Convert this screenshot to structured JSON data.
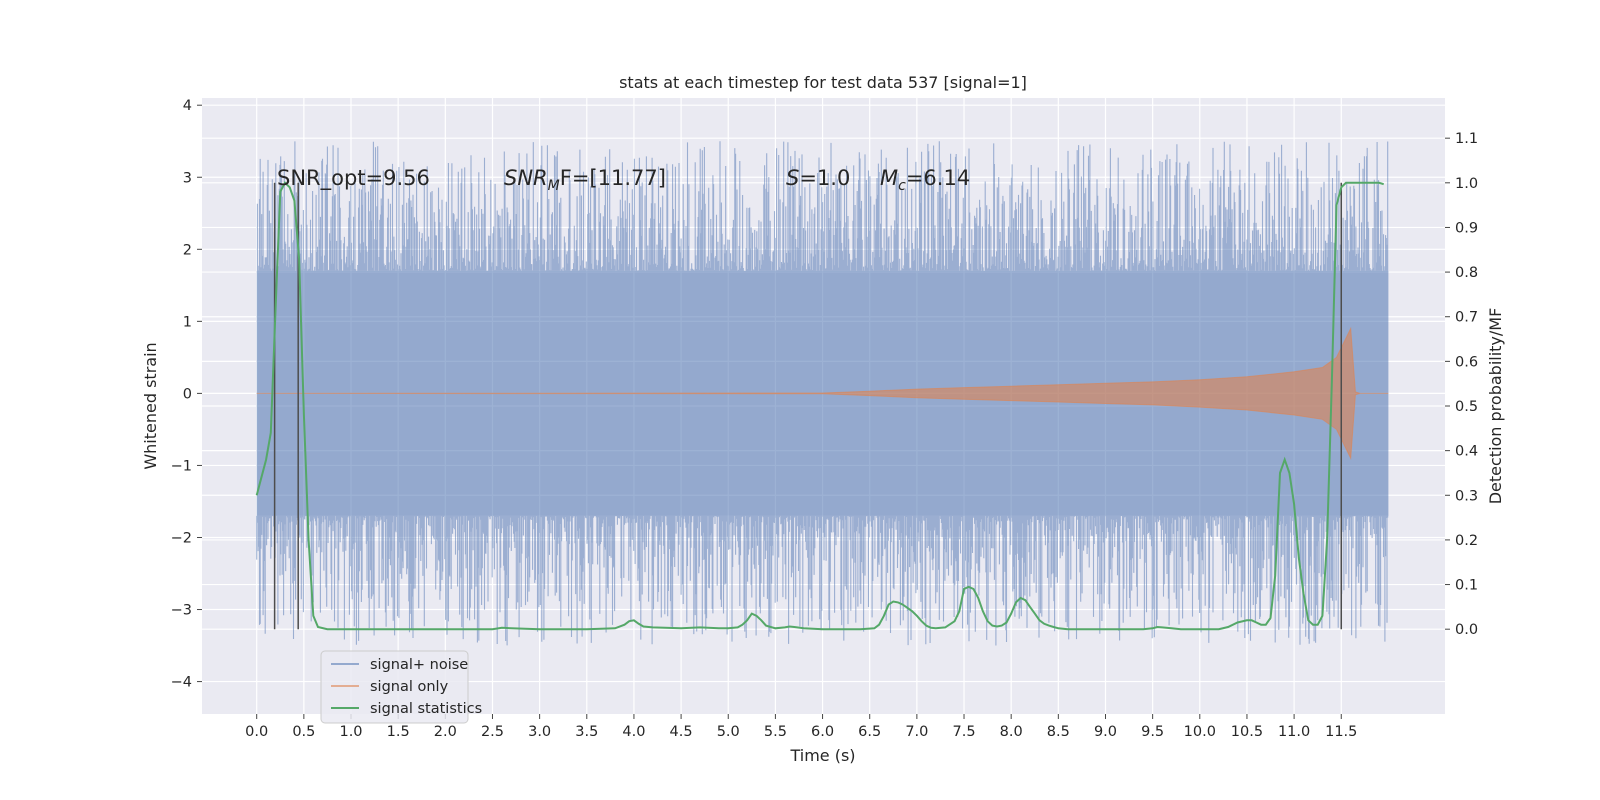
{
  "chart_data": {
    "type": "line",
    "title": "stats at each timestep for test data 537 [signal=1]",
    "xlabel": "Time (s)",
    "ylabel_left": "Whitened strain",
    "ylabel_right": "Detection probability/MF",
    "xlim": [
      -0.58,
      12.6
    ],
    "ylim_left": [
      -4.45,
      4.1
    ],
    "ylim_right": [
      -0.19,
      1.19
    ],
    "x_ticks": [
      "0.0",
      "0.5",
      "1.0",
      "1.5",
      "2.0",
      "2.5",
      "3.0",
      "3.5",
      "4.0",
      "4.5",
      "5.0",
      "5.5",
      "6.0",
      "6.5",
      "7.0",
      "7.5",
      "8.0",
      "8.5",
      "9.0",
      "9.5",
      "10.0",
      "10.5",
      "11.0",
      "11.5"
    ],
    "left_ticks": [
      -4,
      -3,
      -2,
      -1,
      0,
      1,
      2,
      3,
      4
    ],
    "left_tick_labels": [
      "−4",
      "−3",
      "−2",
      "−1",
      "0",
      "1",
      "2",
      "3",
      "4"
    ],
    "right_ticks": [
      0.0,
      0.1,
      0.2,
      0.3,
      0.4,
      0.5,
      0.6,
      0.7,
      0.8,
      0.9,
      1.0,
      1.1
    ],
    "right_tick_labels": [
      "0.0",
      "0.1",
      "0.2",
      "0.3",
      "0.4",
      "0.5",
      "0.6",
      "0.7",
      "0.8",
      "0.9",
      "1.0",
      "1.1"
    ],
    "grid": true,
    "legend_position": "lower-left",
    "annotations": {
      "snr_opt": "SNR_opt=9.56",
      "snr_mf_prefix": "SNR",
      "snr_mf_sub": "M",
      "snr_mf_rest": "F=[11.77]",
      "s_var": "S",
      "s_rest": "=1.0",
      "mc_var": "M",
      "mc_sub": "c",
      "mc_rest": "=6.14"
    },
    "noise_envelope": {
      "x": [
        0.0,
        11.5,
        11.55,
        11.6,
        11.65,
        11.7,
        11.75,
        11.8,
        11.85,
        11.9,
        11.95,
        12.0
      ],
      "upper": [
        1.7,
        1.7,
        1.7,
        1.7,
        1.7,
        1.7,
        1.7,
        1.7,
        1.7,
        1.7,
        1.7,
        1.7
      ],
      "lower": [
        -1.7,
        -1.7,
        -1.7,
        -1.7,
        -1.7,
        -1.7,
        -1.7,
        -1.7,
        -1.7,
        -1.7,
        -1.7,
        -1.7
      ],
      "spike_seed": 537
    },
    "signal_envelope": {
      "x": [
        0.0,
        6.0,
        6.5,
        7.0,
        7.5,
        8.0,
        8.5,
        9.0,
        9.5,
        10.0,
        10.5,
        11.0,
        11.3,
        11.45,
        11.6,
        11.65,
        11.7,
        12.0
      ],
      "amp": [
        0.0,
        0.005,
        0.03,
        0.06,
        0.08,
        0.1,
        0.12,
        0.14,
        0.16,
        0.19,
        0.23,
        0.3,
        0.36,
        0.5,
        0.9,
        0.02,
        0.0,
        0.0
      ]
    },
    "vertical_lines": [
      0.19,
      0.44,
      11.5
    ],
    "vertical_line_range": [
      0.0,
      1.0
    ],
    "series": [
      {
        "name": "signal+ noise",
        "color": "#4c72b0"
      },
      {
        "name": "signal only",
        "color": "#dd8452"
      },
      {
        "name": "signal statistics",
        "color": "#55a868",
        "x": [
          0.0,
          0.1,
          0.15,
          0.2,
          0.25,
          0.3,
          0.35,
          0.4,
          0.45,
          0.5,
          0.55,
          0.6,
          0.65,
          0.75,
          1.0,
          2.0,
          2.5,
          2.6,
          2.7,
          3.0,
          3.5,
          3.8,
          3.9,
          3.95,
          4.0,
          4.05,
          4.1,
          4.2,
          4.5,
          4.7,
          4.9,
          5.0,
          5.1,
          5.15,
          5.2,
          5.25,
          5.3,
          5.35,
          5.4,
          5.5,
          5.6,
          5.65,
          5.7,
          5.8,
          6.0,
          6.2,
          6.4,
          6.55,
          6.6,
          6.65,
          6.7,
          6.75,
          6.8,
          6.85,
          6.9,
          6.95,
          7.0,
          7.05,
          7.1,
          7.15,
          7.2,
          7.3,
          7.4,
          7.45,
          7.5,
          7.55,
          7.6,
          7.65,
          7.7,
          7.75,
          7.8,
          7.85,
          7.9,
          7.95,
          8.0,
          8.05,
          8.1,
          8.15,
          8.2,
          8.25,
          8.3,
          8.35,
          8.4,
          8.45,
          8.5,
          8.6,
          8.8,
          9.0,
          9.2,
          9.4,
          9.5,
          9.55,
          9.6,
          9.7,
          9.8,
          10.0,
          10.1,
          10.2,
          10.3,
          10.4,
          10.5,
          10.55,
          10.6,
          10.65,
          10.7,
          10.75,
          10.8,
          10.85,
          10.9,
          10.95,
          11.0,
          11.05,
          11.1,
          11.15,
          11.2,
          11.25,
          11.3,
          11.35,
          11.4,
          11.45,
          11.5,
          11.55,
          11.6,
          11.7,
          11.8,
          11.9,
          11.95
        ],
        "y": [
          0.3,
          0.38,
          0.44,
          0.72,
          0.98,
          1.0,
          0.99,
          0.96,
          0.83,
          0.48,
          0.2,
          0.03,
          0.005,
          0.0,
          0.0,
          0.0,
          0.0,
          0.003,
          0.002,
          0.0,
          0.0,
          0.002,
          0.01,
          0.018,
          0.02,
          0.012,
          0.006,
          0.004,
          0.002,
          0.004,
          0.002,
          0.002,
          0.004,
          0.01,
          0.02,
          0.035,
          0.03,
          0.02,
          0.008,
          0.002,
          0.004,
          0.006,
          0.005,
          0.002,
          0.0,
          0.0,
          0.0,
          0.002,
          0.01,
          0.03,
          0.055,
          0.062,
          0.06,
          0.055,
          0.048,
          0.04,
          0.03,
          0.018,
          0.008,
          0.003,
          0.002,
          0.004,
          0.018,
          0.04,
          0.09,
          0.095,
          0.09,
          0.07,
          0.04,
          0.018,
          0.008,
          0.006,
          0.008,
          0.015,
          0.035,
          0.06,
          0.07,
          0.065,
          0.05,
          0.035,
          0.02,
          0.012,
          0.008,
          0.005,
          0.002,
          0.0,
          0.0,
          0.0,
          0.0,
          0.0,
          0.002,
          0.005,
          0.004,
          0.002,
          0.0,
          0.0,
          0.0,
          0.0,
          0.005,
          0.015,
          0.02,
          0.02,
          0.015,
          0.01,
          0.01,
          0.025,
          0.12,
          0.35,
          0.38,
          0.35,
          0.28,
          0.16,
          0.08,
          0.02,
          0.01,
          0.01,
          0.03,
          0.2,
          0.55,
          0.95,
          0.99,
          1.0,
          1.0,
          1.0,
          1.0,
          1.0,
          0.997
        ]
      }
    ]
  }
}
